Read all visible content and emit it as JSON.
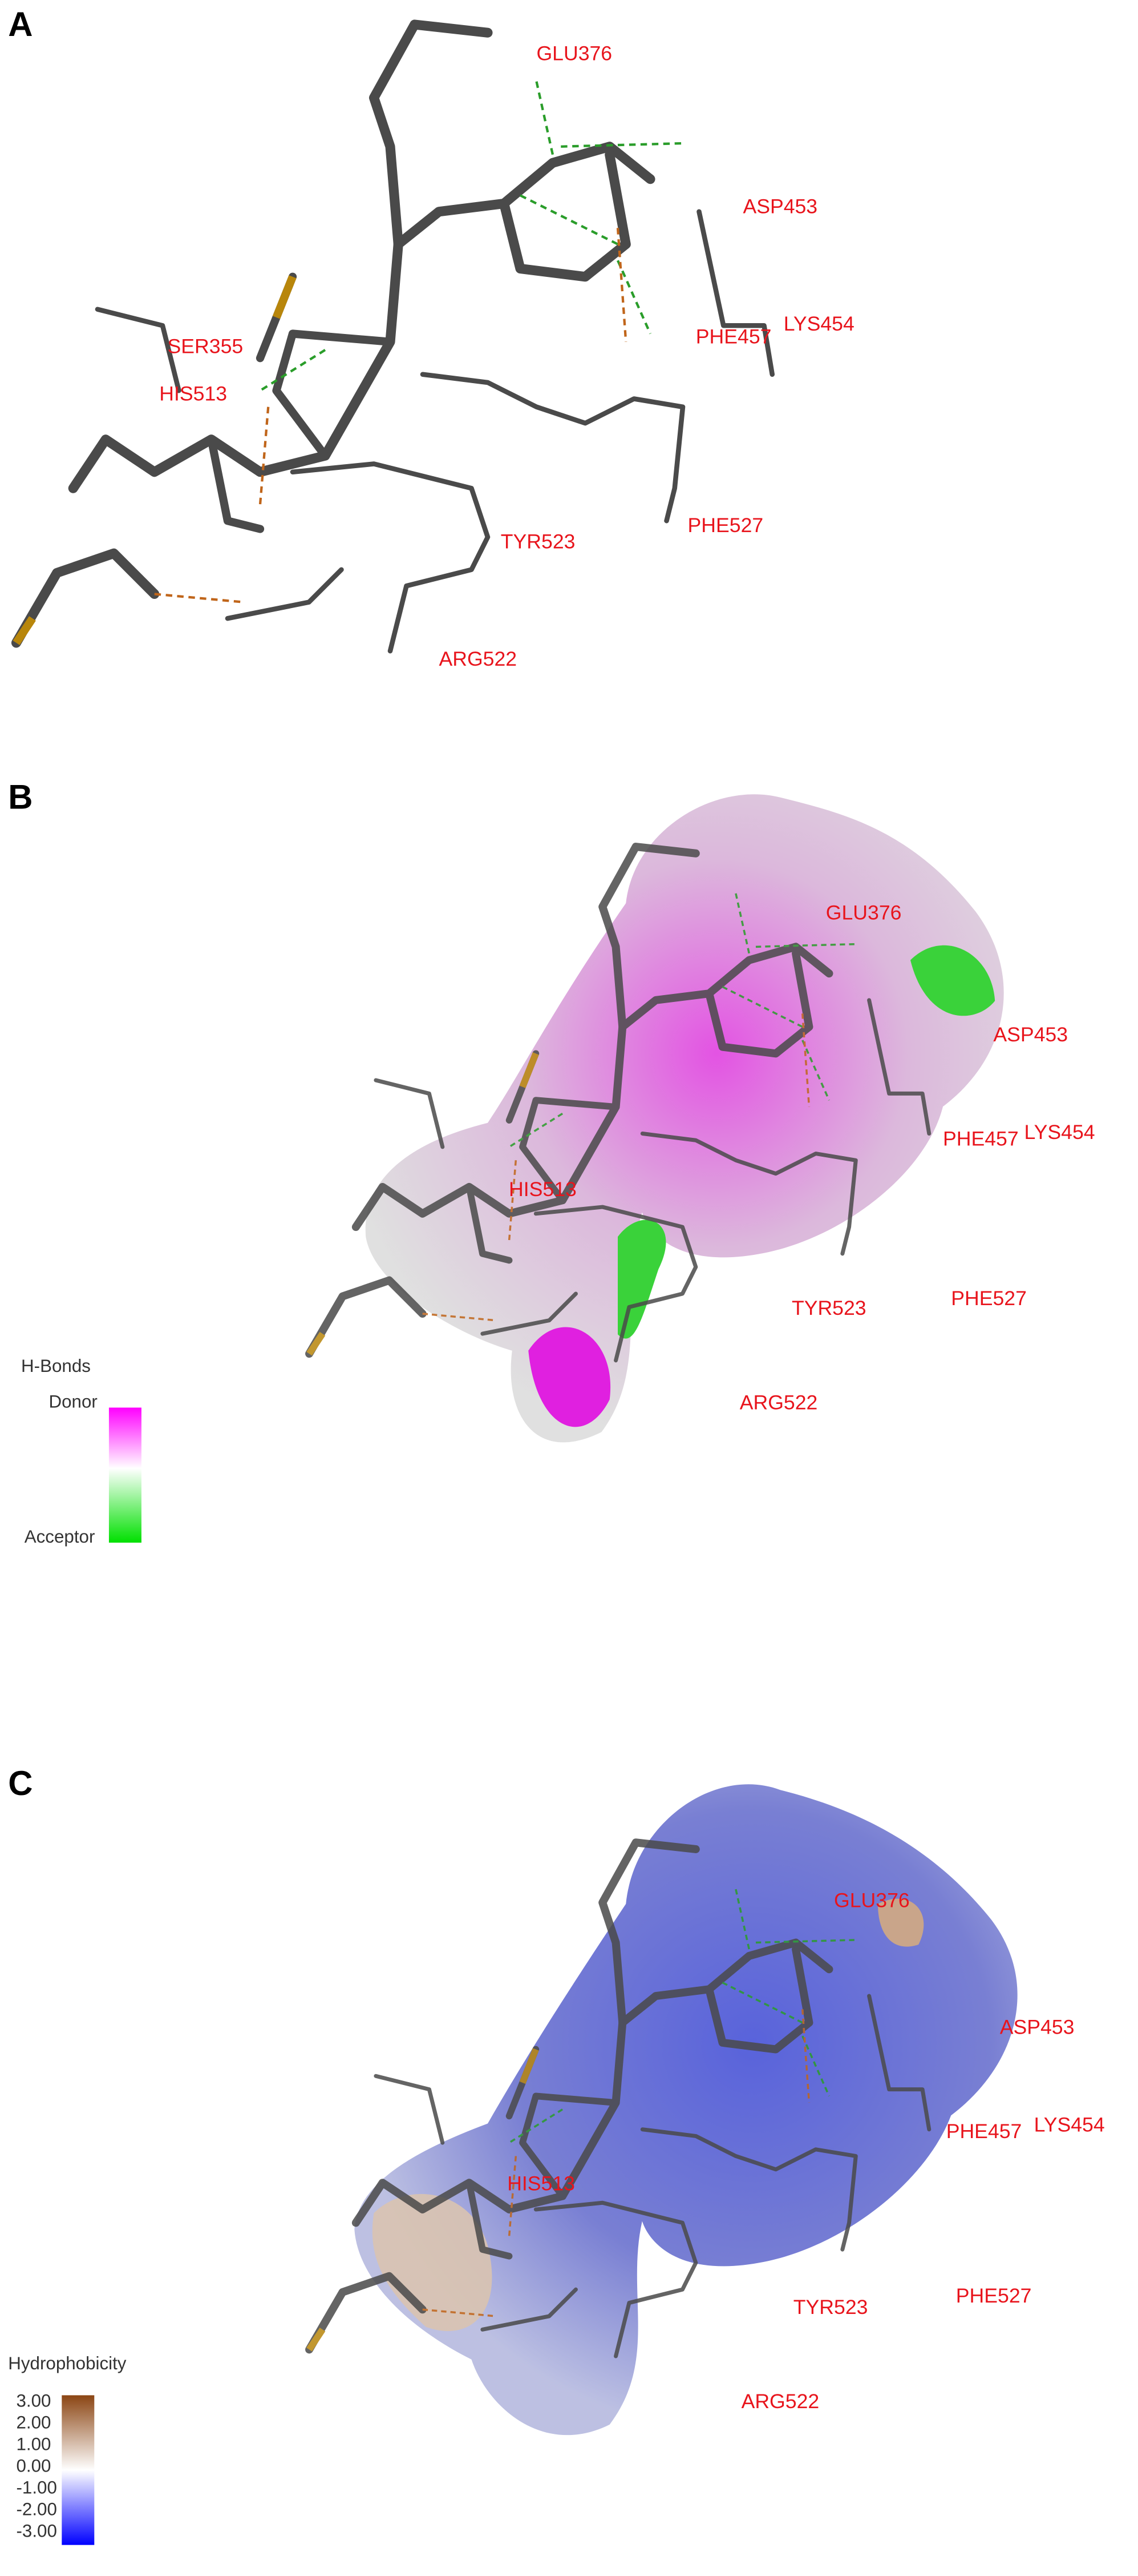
{
  "panels": [
    {
      "label": "A",
      "residues": [
        "GLU376",
        "ASP453",
        "LYS454",
        "PHE457",
        "SER355",
        "HIS513",
        "TYR523",
        "PHE527",
        "ARG522"
      ]
    },
    {
      "label": "B",
      "residues": [
        "GLU376",
        "ASP453",
        "LYS454",
        "PHE457",
        "HIS513",
        "TYR523",
        "PHE527",
        "ARG522"
      ],
      "legend": {
        "title": "H-Bonds",
        "top": "Donor",
        "bottom": "Acceptor"
      }
    },
    {
      "label": "C",
      "residues": [
        "GLU376",
        "ASP453",
        "LYS454",
        "PHE457",
        "HIS513",
        "TYR523",
        "PHE527",
        "ARG522"
      ],
      "legend": {
        "title": "Hydrophobicity",
        "ticks": [
          "3.00",
          "2.00",
          "1.00",
          "0.00",
          "-1.00",
          "-2.00",
          "-3.00"
        ]
      }
    }
  ]
}
